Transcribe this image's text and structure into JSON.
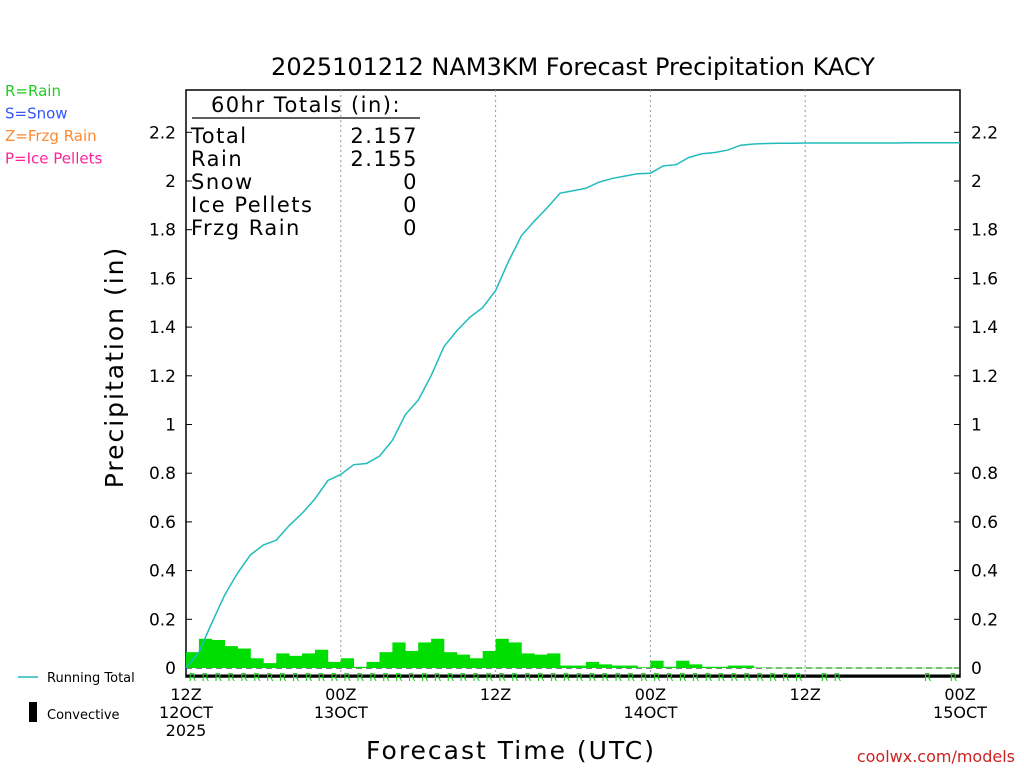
{
  "chart_data": {
    "type": "bar",
    "title": "2025101212 NAM3KM Forecast Precipitation KACY",
    "xlabel": "Forecast Time (UTC)",
    "ylabel": "Precipitation (in)",
    "ylim": [
      0,
      2.35
    ],
    "yticks": [
      0,
      0.2,
      0.4,
      0.6,
      0.8,
      1,
      1.2,
      1.4,
      1.6,
      1.8,
      2,
      2.2
    ],
    "ytick_labels": [
      "0",
      "0.2",
      "0.4",
      "0.6",
      "0.8",
      "1",
      "1.2",
      "1.4",
      "1.6",
      "1.8",
      "2",
      "2.2"
    ],
    "xlim_hours": [
      0,
      60
    ],
    "xticks": [
      {
        "hour": 0,
        "lines": [
          "12Z",
          "12OCT",
          "2025"
        ]
      },
      {
        "hour": 12,
        "lines": [
          "00Z",
          "13OCT"
        ]
      },
      {
        "hour": 24,
        "lines": [
          "12Z"
        ]
      },
      {
        "hour": 36,
        "lines": [
          "00Z",
          "14OCT"
        ]
      },
      {
        "hour": 48,
        "lines": [
          "12Z"
        ]
      },
      {
        "hour": 60,
        "lines": [
          "00Z",
          "15OCT"
        ]
      }
    ],
    "grid_hours": [
      12,
      24,
      36,
      48
    ],
    "legend_ptypes": [
      {
        "label": "R=Rain",
        "color": "#22cc22"
      },
      {
        "label": "S=Snow",
        "color": "#3355ff"
      },
      {
        "label": "Z=Frzg Rain",
        "color": "#ff8833"
      },
      {
        "label": "P=Ice Pellets",
        "color": "#ff2299"
      }
    ],
    "legend_series": [
      {
        "label": "Running Total",
        "color": "#22bbbb",
        "kind": "line"
      },
      {
        "label": "Convective",
        "color": "#000000",
        "kind": "bar"
      }
    ],
    "totals": {
      "header": "60hr Totals (in):",
      "rows": [
        {
          "label": "Total",
          "value": "2.157"
        },
        {
          "label": "Rain",
          "value": "2.155"
        },
        {
          "label": "Snow",
          "value": "0"
        },
        {
          "label": "Ice Pellets",
          "value": "0"
        },
        {
          "label": "Frzg Rain",
          "value": "0"
        }
      ]
    },
    "bar_color": "#00dd00",
    "line_color": "#22bbbb",
    "series": [
      {
        "name": "Hourly Precipitation",
        "type": "bar",
        "hours": [
          1,
          2,
          3,
          4,
          5,
          6,
          7,
          8,
          9,
          10,
          11,
          12,
          13,
          14,
          15,
          16,
          17,
          18,
          19,
          20,
          21,
          22,
          23,
          24,
          25,
          26,
          27,
          28,
          29,
          30,
          31,
          32,
          33,
          34,
          35,
          36,
          37,
          38,
          39,
          40,
          41,
          42,
          43,
          44,
          45,
          46,
          47,
          48,
          49,
          50,
          51,
          52,
          53,
          54,
          55,
          56,
          57,
          58,
          59,
          60
        ],
        "values": [
          0.065,
          0.12,
          0.115,
          0.09,
          0.08,
          0.04,
          0.02,
          0.06,
          0.05,
          0.06,
          0.075,
          0.025,
          0.04,
          0.005,
          0.025,
          0.065,
          0.105,
          0.07,
          0.105,
          0.12,
          0.065,
          0.055,
          0.04,
          0.07,
          0.12,
          0.105,
          0.06,
          0.055,
          0.06,
          0.01,
          0.01,
          0.025,
          0.015,
          0.01,
          0.01,
          0.003,
          0.03,
          0.005,
          0.03,
          0.015,
          0.005,
          0.005,
          0.01,
          0.01,
          0.002,
          0.001,
          0.001,
          0.001,
          0.001,
          0.001,
          0.001,
          0.001,
          0.001,
          0.001,
          0.001,
          0.001,
          0.001,
          0.001,
          0.001,
          0.001
        ]
      },
      {
        "name": "Running Total",
        "type": "line",
        "hours": [
          0,
          1,
          2,
          3,
          4,
          5,
          6,
          7,
          8,
          9,
          10,
          11,
          12,
          13,
          14,
          15,
          16,
          17,
          18,
          19,
          20,
          21,
          22,
          23,
          24,
          25,
          26,
          27,
          28,
          29,
          30,
          31,
          32,
          33,
          34,
          35,
          36,
          37,
          38,
          39,
          40,
          41,
          42,
          43,
          44,
          45,
          46,
          47,
          48,
          49,
          50,
          51,
          52,
          53,
          54,
          55,
          56,
          57,
          58,
          59,
          60
        ],
        "values": [
          0.0,
          0.065,
          0.185,
          0.3,
          0.39,
          0.465,
          0.505,
          0.525,
          0.585,
          0.635,
          0.695,
          0.77,
          0.795,
          0.835,
          0.84,
          0.87,
          0.935,
          1.04,
          1.1,
          1.2,
          1.32,
          1.385,
          1.44,
          1.48,
          1.55,
          1.67,
          1.775,
          1.835,
          1.89,
          1.95,
          1.96,
          1.97,
          1.995,
          2.01,
          2.02,
          2.03,
          2.032,
          2.062,
          2.067,
          2.097,
          2.112,
          2.117,
          2.127,
          2.147,
          2.152,
          2.154,
          2.155,
          2.155,
          2.156,
          2.156,
          2.156,
          2.156,
          2.156,
          2.156,
          2.156,
          2.156,
          2.157,
          2.157,
          2.157,
          2.157,
          2.157
        ]
      }
    ],
    "ptype_markers": {
      "letter": "R",
      "hours": [
        1,
        2,
        3,
        4,
        5,
        6,
        7,
        8,
        9,
        10,
        11,
        12,
        13,
        14,
        15,
        16,
        17,
        18,
        19,
        20,
        21,
        22,
        23,
        24,
        25,
        26,
        27,
        28,
        29,
        30,
        31,
        32,
        33,
        34,
        35,
        36,
        37,
        38,
        39,
        40,
        41,
        42,
        43,
        44,
        45,
        46,
        47,
        48,
        50,
        51,
        58,
        60
      ]
    },
    "credit": "coolwx.com/models"
  }
}
